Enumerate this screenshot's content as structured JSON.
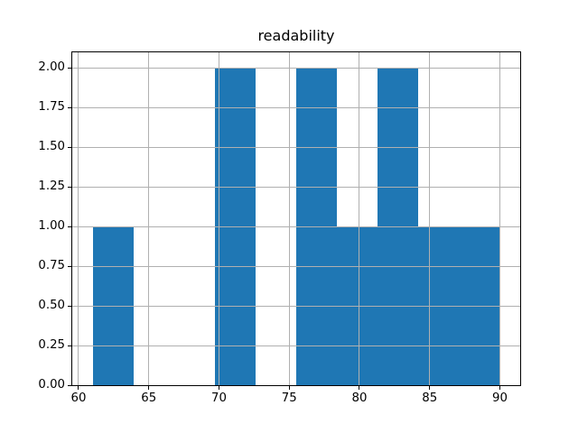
{
  "title": "readability",
  "colors": {
    "bar": "#1f77b4",
    "grid": "#b0b0b0",
    "spine": "#000000",
    "background": "#ffffff"
  },
  "chart_data": {
    "type": "bar",
    "subtype": "histogram",
    "title": "readability",
    "xlabel": "",
    "ylabel": "",
    "bin_edges": [
      61,
      63.9,
      66.8,
      69.7,
      72.6,
      75.5,
      78.4,
      81.3,
      84.2,
      87.1,
      90
    ],
    "counts": [
      1,
      0,
      0,
      2,
      0,
      2,
      1,
      2,
      1,
      1
    ],
    "xlim": [
      59.55,
      91.45
    ],
    "ylim": [
      0,
      2.1
    ],
    "xticks": [
      {
        "value": 60,
        "label": "60"
      },
      {
        "value": 65,
        "label": "65"
      },
      {
        "value": 70,
        "label": "70"
      },
      {
        "value": 75,
        "label": "75"
      },
      {
        "value": 80,
        "label": "80"
      },
      {
        "value": 85,
        "label": "85"
      },
      {
        "value": 90,
        "label": "90"
      }
    ],
    "yticks": [
      {
        "value": 0.0,
        "label": "0.00"
      },
      {
        "value": 0.25,
        "label": "0.25"
      },
      {
        "value": 0.5,
        "label": "0.50"
      },
      {
        "value": 0.75,
        "label": "0.75"
      },
      {
        "value": 1.0,
        "label": "1.00"
      },
      {
        "value": 1.25,
        "label": "1.25"
      },
      {
        "value": 1.5,
        "label": "1.50"
      },
      {
        "value": 1.75,
        "label": "1.75"
      },
      {
        "value": 2.0,
        "label": "2.00"
      }
    ],
    "grid": true,
    "grid_above_bars": true,
    "legend": null,
    "bar_color": "#1f77b4",
    "grid_color": "#b0b0b0"
  }
}
